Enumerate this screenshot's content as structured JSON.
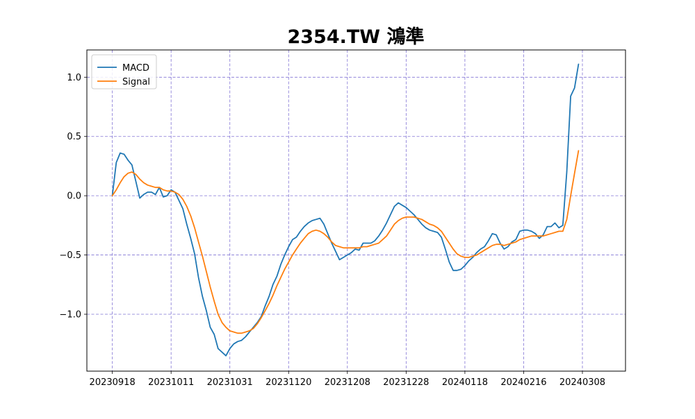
{
  "chart_data": {
    "type": "line",
    "title": "2354.TW 鴻準",
    "xlabel": "",
    "ylabel": "",
    "grid": true,
    "legend_position": "top-left",
    "x_tick_labels": [
      "20230918",
      "20231011",
      "20231031",
      "20231120",
      "20231208",
      "20231228",
      "20240118",
      "20240216",
      "20240308"
    ],
    "x_tick_indices": [
      0,
      15,
      30,
      45,
      60,
      75,
      90,
      105,
      120
    ],
    "x_range": [
      -6.5,
      131
    ],
    "ylim": [
      -1.48,
      1.23
    ],
    "y_ticks": [
      1.0,
      0.5,
      0.0,
      -0.5,
      -1.0
    ],
    "y_tick_labels": [
      "1.0",
      "0.5",
      "0.0",
      "−0.5",
      "−1.0"
    ],
    "series": [
      {
        "name": "MACD",
        "color": "#1f77b4",
        "values": [
          0.0,
          0.28,
          0.36,
          0.35,
          0.3,
          0.26,
          0.12,
          -0.02,
          0.01,
          0.03,
          0.03,
          0.01,
          0.07,
          -0.01,
          0.0,
          0.05,
          0.03,
          -0.04,
          -0.11,
          -0.24,
          -0.36,
          -0.49,
          -0.69,
          -0.85,
          -0.97,
          -1.11,
          -1.17,
          -1.29,
          -1.32,
          -1.35,
          -1.29,
          -1.25,
          -1.23,
          -1.22,
          -1.19,
          -1.15,
          -1.11,
          -1.07,
          -1.02,
          -0.93,
          -0.85,
          -0.75,
          -0.68,
          -0.58,
          -0.5,
          -0.43,
          -0.37,
          -0.35,
          -0.3,
          -0.26,
          -0.23,
          -0.21,
          -0.2,
          -0.19,
          -0.24,
          -0.32,
          -0.4,
          -0.47,
          -0.54,
          -0.52,
          -0.5,
          -0.48,
          -0.45,
          -0.46,
          -0.4,
          -0.4,
          -0.4,
          -0.38,
          -0.34,
          -0.29,
          -0.23,
          -0.16,
          -0.09,
          -0.06,
          -0.08,
          -0.1,
          -0.13,
          -0.16,
          -0.2,
          -0.24,
          -0.27,
          -0.29,
          -0.3,
          -0.31,
          -0.35,
          -0.45,
          -0.56,
          -0.63,
          -0.63,
          -0.62,
          -0.59,
          -0.55,
          -0.52,
          -0.48,
          -0.45,
          -0.43,
          -0.38,
          -0.32,
          -0.33,
          -0.4,
          -0.45,
          -0.43,
          -0.39,
          -0.37,
          -0.3,
          -0.29,
          -0.29,
          -0.3,
          -0.32,
          -0.36,
          -0.33,
          -0.26,
          -0.26,
          -0.23,
          -0.27,
          -0.25,
          0.2,
          0.84,
          0.91,
          1.11
        ]
      },
      {
        "name": "Signal",
        "color": "#ff7f0e",
        "values": [
          0.0,
          0.05,
          0.11,
          0.16,
          0.19,
          0.2,
          0.18,
          0.14,
          0.11,
          0.09,
          0.08,
          0.07,
          0.07,
          0.05,
          0.04,
          0.04,
          0.03,
          0.01,
          -0.03,
          -0.09,
          -0.17,
          -0.27,
          -0.39,
          -0.51,
          -0.64,
          -0.77,
          -0.89,
          -1.0,
          -1.07,
          -1.11,
          -1.14,
          -1.15,
          -1.16,
          -1.16,
          -1.15,
          -1.14,
          -1.12,
          -1.08,
          -1.03,
          -0.97,
          -0.91,
          -0.84,
          -0.76,
          -0.69,
          -0.62,
          -0.56,
          -0.5,
          -0.45,
          -0.4,
          -0.36,
          -0.32,
          -0.3,
          -0.29,
          -0.3,
          -0.32,
          -0.35,
          -0.39,
          -0.42,
          -0.43,
          -0.44,
          -0.44,
          -0.44,
          -0.44,
          -0.44,
          -0.43,
          -0.43,
          -0.42,
          -0.41,
          -0.4,
          -0.37,
          -0.34,
          -0.29,
          -0.24,
          -0.21,
          -0.19,
          -0.18,
          -0.18,
          -0.18,
          -0.19,
          -0.2,
          -0.22,
          -0.24,
          -0.25,
          -0.27,
          -0.3,
          -0.35,
          -0.4,
          -0.45,
          -0.49,
          -0.51,
          -0.52,
          -0.52,
          -0.51,
          -0.5,
          -0.48,
          -0.46,
          -0.44,
          -0.42,
          -0.41,
          -0.41,
          -0.42,
          -0.41,
          -0.4,
          -0.39,
          -0.37,
          -0.36,
          -0.35,
          -0.34,
          -0.34,
          -0.34,
          -0.34,
          -0.33,
          -0.32,
          -0.31,
          -0.3,
          -0.3,
          -0.2,
          0.0,
          0.19,
          0.38
        ]
      }
    ]
  }
}
